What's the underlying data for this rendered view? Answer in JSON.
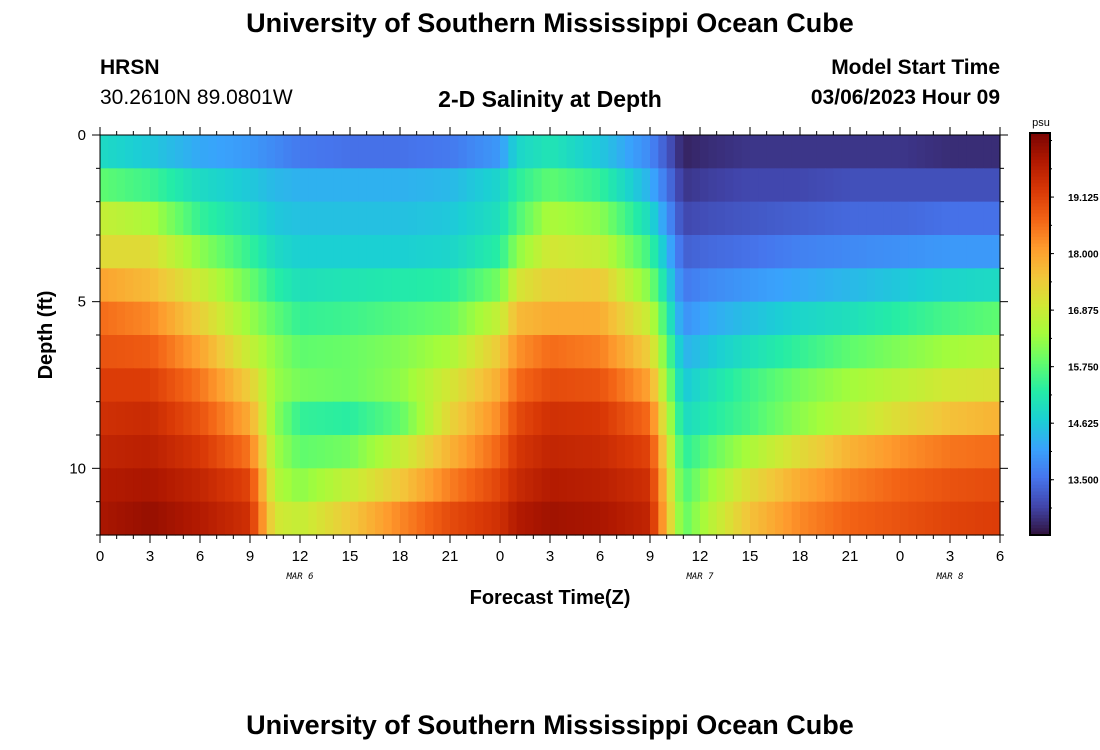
{
  "header": {
    "title": "University of Southern Mississippi Ocean Cube",
    "station": "HRSN",
    "coords": "30.2610N  89.0801W",
    "plot_title": "2-D Salinity at Depth",
    "model_label": "Model Start Time",
    "model_time": "03/06/2023 Hour 09"
  },
  "footer": {
    "title": "University of Southern Mississippi Ocean Cube"
  },
  "chart_data": {
    "type": "heatmap",
    "title": "2-D Salinity at Depth",
    "xlabel": "Forecast Time(Z)",
    "ylabel": "Depth (ft)",
    "x_tick_labels": [
      "0",
      "3",
      "6",
      "9",
      "12",
      "15",
      "18",
      "21",
      "0",
      "3",
      "6",
      "9",
      "12",
      "15",
      "18",
      "21",
      "0",
      "3",
      "6"
    ],
    "x_range_hours": [
      0,
      54
    ],
    "date_labels": [
      {
        "text": "MAR 6",
        "hour": 12
      },
      {
        "text": "MAR 7",
        "hour": 36
      },
      {
        "text": "MAR 8",
        "hour": 51
      }
    ],
    "y_tick_labels": [
      "0",
      "5",
      "10"
    ],
    "y_range_ft": [
      0,
      12
    ],
    "y_inverted": true,
    "colorbar": {
      "unit": "psu",
      "tick_labels": [
        "19.125",
        "18.000",
        "16.875",
        "15.750",
        "14.625",
        "13.500"
      ],
      "tick_values": [
        19.125,
        18.0,
        16.875,
        15.75,
        14.625,
        13.5
      ],
      "range": [
        12.4,
        20.4
      ],
      "colors": [
        "#30123b",
        "#4145ab",
        "#4675ed",
        "#39a2fc",
        "#1bcfd4",
        "#24eca6",
        "#61fc6c",
        "#a4fc3b",
        "#d1e834",
        "#f3c63a",
        "#fe9b2d",
        "#f36315",
        "#d93806",
        "#b11901",
        "#7a0402"
      ]
    },
    "time_anchors_hours": [
      0,
      3,
      6,
      9,
      10.5,
      12,
      15,
      18,
      21,
      24,
      25,
      27,
      30,
      33,
      35,
      36.5,
      39,
      42,
      45,
      48,
      51,
      54
    ],
    "depth_layers_ft": [
      0,
      1,
      2,
      3,
      4,
      5,
      6,
      7,
      8,
      9,
      10,
      11,
      12
    ],
    "salinity_rows": [
      [
        14.9,
        14.6,
        14.2,
        14.0,
        13.8,
        13.6,
        13.5,
        13.5,
        13.6,
        14.0,
        14.8,
        15.1,
        14.6,
        13.8,
        12.6,
        12.7,
        12.8,
        12.8,
        12.8,
        12.8,
        12.7,
        12.7
      ],
      [
        15.8,
        15.5,
        14.9,
        14.6,
        14.4,
        14.3,
        14.3,
        14.3,
        14.4,
        14.8,
        15.3,
        15.8,
        15.4,
        14.3,
        12.8,
        12.9,
        13.0,
        13.0,
        13.1,
        13.1,
        13.1,
        13.1
      ],
      [
        16.8,
        16.5,
        15.4,
        14.9,
        14.6,
        14.5,
        14.5,
        14.5,
        14.6,
        15.0,
        15.6,
        16.5,
        16.2,
        14.9,
        13.0,
        13.1,
        13.2,
        13.3,
        13.4,
        13.4,
        13.5,
        13.5
      ],
      [
        17.2,
        17.2,
        16.2,
        15.4,
        14.9,
        14.7,
        14.7,
        14.7,
        14.8,
        15.3,
        16.2,
        17.0,
        16.8,
        15.5,
        13.3,
        13.4,
        13.5,
        13.7,
        13.8,
        13.9,
        14.0,
        14.0
      ],
      [
        18.0,
        17.7,
        16.9,
        15.9,
        15.3,
        15.0,
        15.1,
        15.2,
        15.3,
        16.0,
        17.0,
        17.4,
        17.5,
        16.1,
        13.6,
        13.8,
        14.0,
        14.2,
        14.4,
        14.6,
        14.8,
        14.9
      ],
      [
        18.6,
        18.3,
        17.4,
        16.3,
        15.8,
        15.4,
        15.5,
        15.7,
        15.9,
        16.8,
        17.7,
        17.9,
        17.9,
        16.8,
        13.9,
        14.2,
        14.5,
        14.8,
        15.0,
        15.3,
        15.6,
        15.8
      ],
      [
        18.9,
        18.8,
        18.0,
        16.8,
        16.2,
        15.8,
        15.9,
        16.1,
        16.5,
        17.5,
        18.2,
        18.6,
        18.4,
        17.4,
        14.3,
        14.6,
        15.0,
        15.4,
        15.8,
        16.1,
        16.4,
        16.6
      ],
      [
        19.2,
        19.2,
        18.5,
        17.4,
        16.3,
        16.0,
        15.9,
        16.2,
        17.0,
        17.9,
        18.6,
        19.0,
        18.9,
        18.0,
        14.6,
        15.0,
        15.5,
        16.0,
        16.4,
        16.7,
        17.0,
        17.1
      ],
      [
        19.4,
        19.5,
        18.9,
        17.9,
        16.2,
        15.4,
        15.3,
        15.8,
        17.3,
        18.3,
        19.0,
        19.4,
        19.3,
        18.6,
        14.9,
        15.2,
        15.6,
        16.2,
        16.7,
        17.2,
        17.6,
        17.8
      ],
      [
        19.6,
        19.7,
        19.3,
        18.5,
        16.4,
        15.8,
        16.0,
        16.8,
        17.8,
        18.7,
        19.3,
        19.6,
        19.5,
        19.1,
        15.3,
        15.8,
        16.5,
        17.2,
        17.8,
        18.2,
        18.5,
        18.6
      ],
      [
        19.8,
        19.9,
        19.6,
        19.1,
        16.6,
        16.2,
        16.8,
        17.5,
        18.4,
        19.1,
        19.5,
        19.8,
        19.7,
        19.4,
        15.6,
        16.3,
        17.2,
        17.9,
        18.4,
        18.7,
        18.9,
        19.0
      ],
      [
        19.9,
        20.1,
        19.8,
        19.4,
        17.0,
        16.8,
        17.5,
        18.3,
        19.0,
        19.4,
        19.8,
        20.0,
        19.9,
        19.6,
        15.8,
        16.6,
        17.6,
        18.3,
        18.7,
        18.9,
        19.1,
        19.2
      ]
    ]
  }
}
